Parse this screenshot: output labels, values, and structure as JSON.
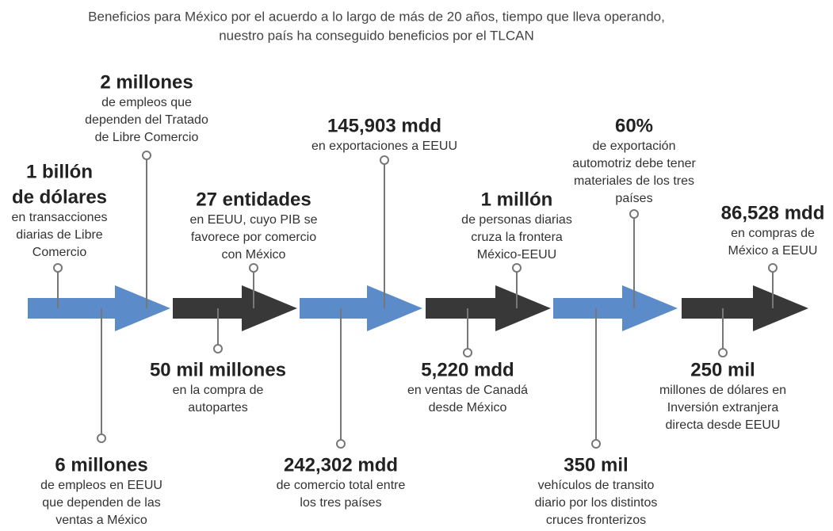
{
  "title": [
    "Beneficios para México por el acuerdo a lo largo de más de 20 años, tiempo que lleva operando,",
    "nuestro país ha conseguido beneficios por el TLCAN"
  ],
  "items": [
    {
      "heading": [
        "1 billón",
        "de dólares"
      ],
      "text": [
        "en transacciones",
        "diarias de Libre",
        "Comercio"
      ]
    },
    {
      "heading": [
        "2 millones"
      ],
      "text": [
        "de empleos que",
        "dependen del Tratado",
        "de Libre Comercio"
      ]
    },
    {
      "heading": [
        "27 entidades"
      ],
      "text": [
        "en EEUU, cuyo PIB se",
        "favorece por comercio",
        "con México"
      ]
    },
    {
      "heading": [
        "145,903 mdd"
      ],
      "text": [
        "en exportaciones a EEUU"
      ]
    },
    {
      "heading": [
        "1 millón"
      ],
      "text": [
        "de personas diarias",
        "cruza la frontera",
        "México-EEUU"
      ]
    },
    {
      "heading": [
        "60%"
      ],
      "text": [
        "de exportación",
        "automotriz debe tener",
        "materiales de los tres",
        "países"
      ]
    },
    {
      "heading": [
        "86,528 mdd"
      ],
      "text": [
        "en compras de",
        "México a EEUU"
      ]
    },
    {
      "heading": [
        "50 mil millones"
      ],
      "text": [
        "en la compra de",
        "autopartes"
      ]
    },
    {
      "heading": [
        "6 millones"
      ],
      "text": [
        "de empleos en EEUU",
        "que dependen de las",
        "ventas a México"
      ]
    },
    {
      "heading": [
        "242,302 mdd"
      ],
      "text": [
        "de comercio total entre",
        "los tres países"
      ]
    },
    {
      "heading": [
        "5,220 mdd"
      ],
      "text": [
        "en ventas de Canadá",
        "desde México"
      ]
    },
    {
      "heading": [
        "350 mil"
      ],
      "text": [
        "vehículos de transito",
        "diario por los distintos",
        "cruces fronterizos"
      ]
    },
    {
      "heading": [
        "250 mil"
      ],
      "text": [
        "millones de dólares en",
        "Inversión extranjera",
        "directa desde EEUU"
      ]
    }
  ]
}
